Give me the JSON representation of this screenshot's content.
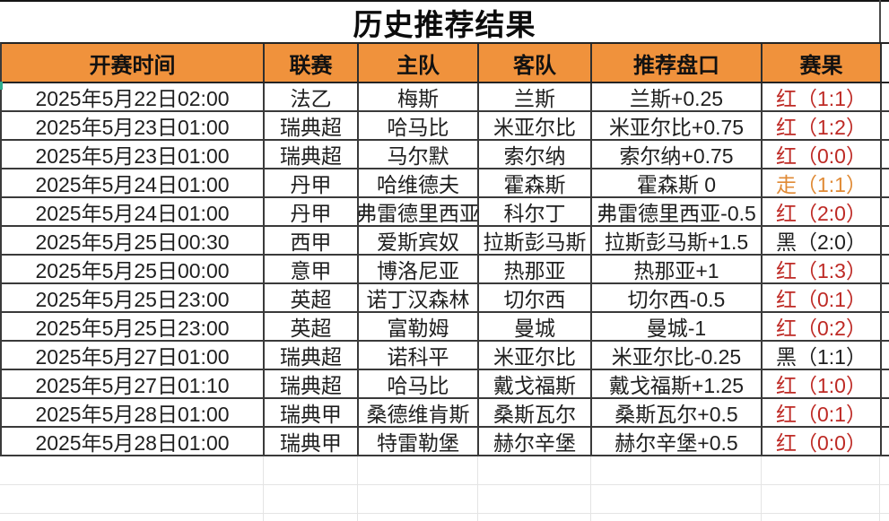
{
  "title": "历史推荐结果",
  "columns": [
    "开赛时间",
    "联赛",
    "主队",
    "客队",
    "推荐盘口",
    "赛果"
  ],
  "rows": [
    {
      "time": "2025年5月22日02:00",
      "league": "法乙",
      "home": "梅斯",
      "away": "兰斯",
      "handicap": "兰斯+0.25",
      "result": "红（1:1）",
      "result_type": "red"
    },
    {
      "time": "2025年5月23日01:00",
      "league": "瑞典超",
      "home": "哈马比",
      "away": "米亚尔比",
      "handicap": "米亚尔比+0.75",
      "result": "红（1:2）",
      "result_type": "red"
    },
    {
      "time": "2025年5月23日01:00",
      "league": "瑞典超",
      "home": "马尔默",
      "away": "索尔纳",
      "handicap": "索尔纳+0.75",
      "result": "红（0:0）",
      "result_type": "red"
    },
    {
      "time": "2025年5月24日01:00",
      "league": "丹甲",
      "home": "哈维德夫",
      "away": "霍森斯",
      "handicap": "霍森斯 0",
      "result": "走（1:1）",
      "result_type": "walk"
    },
    {
      "time": "2025年5月24日01:00",
      "league": "丹甲",
      "home": "弗雷德里西亚",
      "away": "科尔丁",
      "handicap": "弗雷德里西亚-0.5",
      "result": "红（2:0）",
      "result_type": "red"
    },
    {
      "time": "2025年5月25日00:30",
      "league": "西甲",
      "home": "爱斯宾奴",
      "away": "拉斯彭马斯",
      "handicap": "拉斯彭马斯+1.5",
      "result": "黑（2:0）",
      "result_type": "black"
    },
    {
      "time": "2025年5月25日00:00",
      "league": "意甲",
      "home": "博洛尼亚",
      "away": "热那亚",
      "handicap": "热那亚+1",
      "result": "红（1:3）",
      "result_type": "red"
    },
    {
      "time": "2025年5月25日23:00",
      "league": "英超",
      "home": "诺丁汉森林",
      "away": "切尔西",
      "handicap": "切尔西-0.5",
      "result": "红（0:1）",
      "result_type": "red"
    },
    {
      "time": "2025年5月25日23:00",
      "league": "英超",
      "home": "富勒姆",
      "away": "曼城",
      "handicap": "曼城-1",
      "result": "红（0:2）",
      "result_type": "red"
    },
    {
      "time": "2025年5月27日01:00",
      "league": "瑞典超",
      "home": "诺科平",
      "away": "米亚尔比",
      "handicap": "米亚尔比-0.25",
      "result": "黑（1:1）",
      "result_type": "black"
    },
    {
      "time": "2025年5月27日01:10",
      "league": "瑞典超",
      "home": "哈马比",
      "away": "戴戈福斯",
      "handicap": "戴戈福斯+1.25",
      "result": "红（1:0）",
      "result_type": "red"
    },
    {
      "time": "2025年5月28日01:00",
      "league": "瑞典甲",
      "home": "桑德维肯斯",
      "away": "桑斯瓦尔",
      "handicap": "桑斯瓦尔+0.5",
      "result": "红（0:1）",
      "result_type": "red"
    },
    {
      "time": "2025年5月28日01:00",
      "league": "瑞典甲",
      "home": "特雷勒堡",
      "away": "赫尔辛堡",
      "handicap": "赫尔辛堡+0.5",
      "result": "红（0:0）",
      "result_type": "red"
    }
  ],
  "colors": {
    "header_bg": "#F0923C",
    "red": "#BE2A25",
    "walk": "#E08A35",
    "black": "#1F1F1F"
  }
}
